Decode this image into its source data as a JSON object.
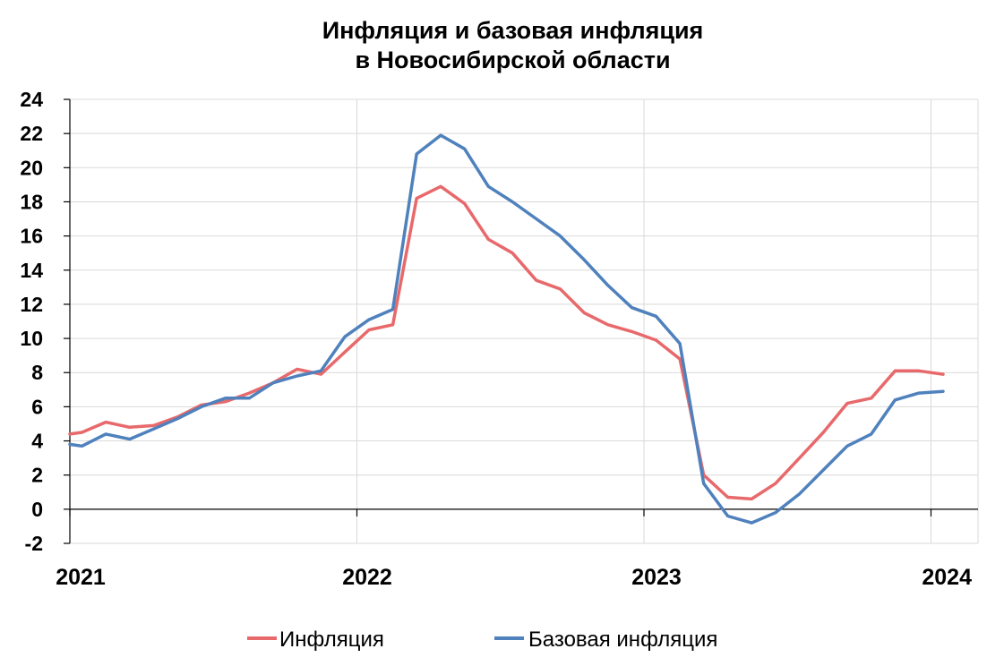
{
  "chart_data": {
    "type": "line",
    "title_lines": [
      "Инфляция и базовая инфляция",
      "в Новосибирской области"
    ],
    "xlabel": "",
    "ylabel": "",
    "ylim": [
      -2,
      24
    ],
    "yticks": [
      -2,
      0,
      2,
      4,
      6,
      8,
      10,
      12,
      14,
      16,
      18,
      20,
      22,
      24
    ],
    "xlim": [
      2021,
      2024.15
    ],
    "xticks": [
      2021,
      2022,
      2023,
      2024
    ],
    "grid": true,
    "legend_position": "bottom",
    "colors": {
      "inflation": "#e8696b",
      "core": "#4f81bd",
      "grid": "#d9d9d9",
      "axis": "#000000"
    },
    "series": [
      {
        "name": "Инфляция",
        "color": "#e8696b",
        "x": [
          2021.0,
          2021.042,
          2021.125,
          2021.208,
          2021.292,
          2021.375,
          2021.458,
          2021.542,
          2021.625,
          2021.708,
          2021.792,
          2021.875,
          2021.958,
          2022.042,
          2022.125,
          2022.208,
          2022.292,
          2022.375,
          2022.458,
          2022.542,
          2022.625,
          2022.708,
          2022.792,
          2022.875,
          2022.958,
          2023.042,
          2023.125,
          2023.208,
          2023.292,
          2023.375,
          2023.458,
          2023.542,
          2023.625,
          2023.708,
          2023.792,
          2023.875,
          2023.958,
          2024.042
        ],
        "values": [
          4.4,
          4.5,
          5.1,
          4.8,
          4.9,
          5.4,
          6.1,
          6.3,
          6.8,
          7.4,
          8.2,
          7.9,
          9.2,
          10.5,
          10.8,
          18.2,
          18.9,
          17.9,
          15.8,
          15.0,
          13.4,
          12.9,
          11.5,
          10.8,
          10.4,
          9.9,
          8.8,
          2.0,
          0.7,
          0.6,
          1.5,
          3.0,
          4.5,
          6.2,
          6.5,
          8.1,
          8.1,
          7.9
        ]
      },
      {
        "name": "Базовая инфляция",
        "color": "#4f81bd",
        "x": [
          2021.0,
          2021.042,
          2021.125,
          2021.208,
          2021.292,
          2021.375,
          2021.458,
          2021.542,
          2021.625,
          2021.708,
          2021.792,
          2021.875,
          2021.958,
          2022.042,
          2022.125,
          2022.208,
          2022.292,
          2022.375,
          2022.458,
          2022.542,
          2022.625,
          2022.708,
          2022.792,
          2022.875,
          2022.958,
          2023.042,
          2023.125,
          2023.208,
          2023.292,
          2023.375,
          2023.458,
          2023.542,
          2023.625,
          2023.708,
          2023.792,
          2023.875,
          2023.958,
          2024.042
        ],
        "values": [
          3.8,
          3.7,
          4.4,
          4.1,
          4.7,
          5.3,
          6.0,
          6.5,
          6.5,
          7.4,
          7.8,
          8.1,
          10.1,
          11.1,
          11.7,
          20.8,
          21.9,
          21.1,
          18.9,
          18.0,
          17.0,
          16.0,
          14.6,
          13.1,
          11.8,
          11.3,
          9.7,
          1.5,
          -0.4,
          -0.8,
          -0.2,
          0.9,
          2.3,
          3.7,
          4.4,
          6.4,
          6.8,
          6.9
        ]
      }
    ]
  }
}
